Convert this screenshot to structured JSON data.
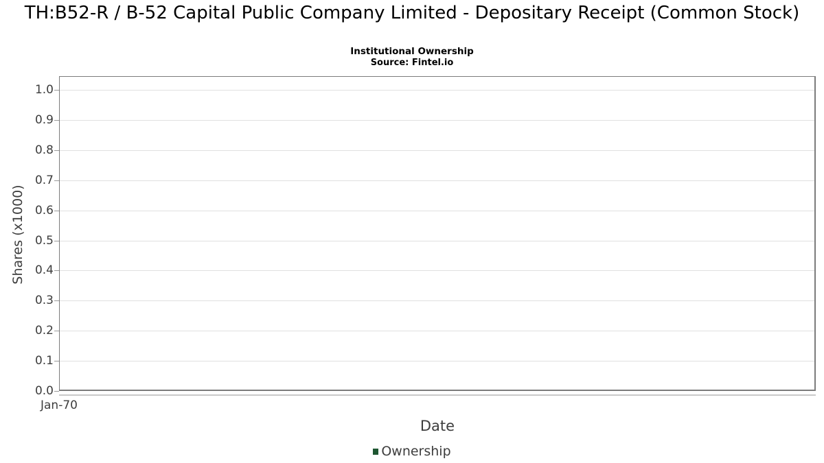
{
  "chart_data": {
    "type": "line",
    "title": "TH:B52-R / B-52 Capital Public Company Limited - Depositary Receipt (Common Stock)",
    "subtitle": "Institutional Ownership",
    "source": "Source: Fintel.io",
    "xlabel": "Date",
    "ylabel": "Shares (x1000)",
    "x_ticks": [
      "Jan-70"
    ],
    "y_ticks": [
      "0.0",
      "0.1",
      "0.2",
      "0.3",
      "0.4",
      "0.5",
      "0.6",
      "0.7",
      "0.8",
      "0.9",
      "1.0"
    ],
    "ylim": [
      0,
      1.045
    ],
    "grid": "horizontal",
    "legend_position": "bottom-center",
    "series": [
      {
        "name": "Ownership",
        "color": "#1e5631",
        "values": []
      }
    ]
  },
  "colors": {
    "plot_border": "#7b7b7b",
    "gridline": "#e0e0e0",
    "axis_strip": "#c9c9c9",
    "tick_mark": "#999999",
    "axis_text": "#3d3d3d",
    "title_text": "#000000",
    "legend_green": "#1e5631"
  }
}
